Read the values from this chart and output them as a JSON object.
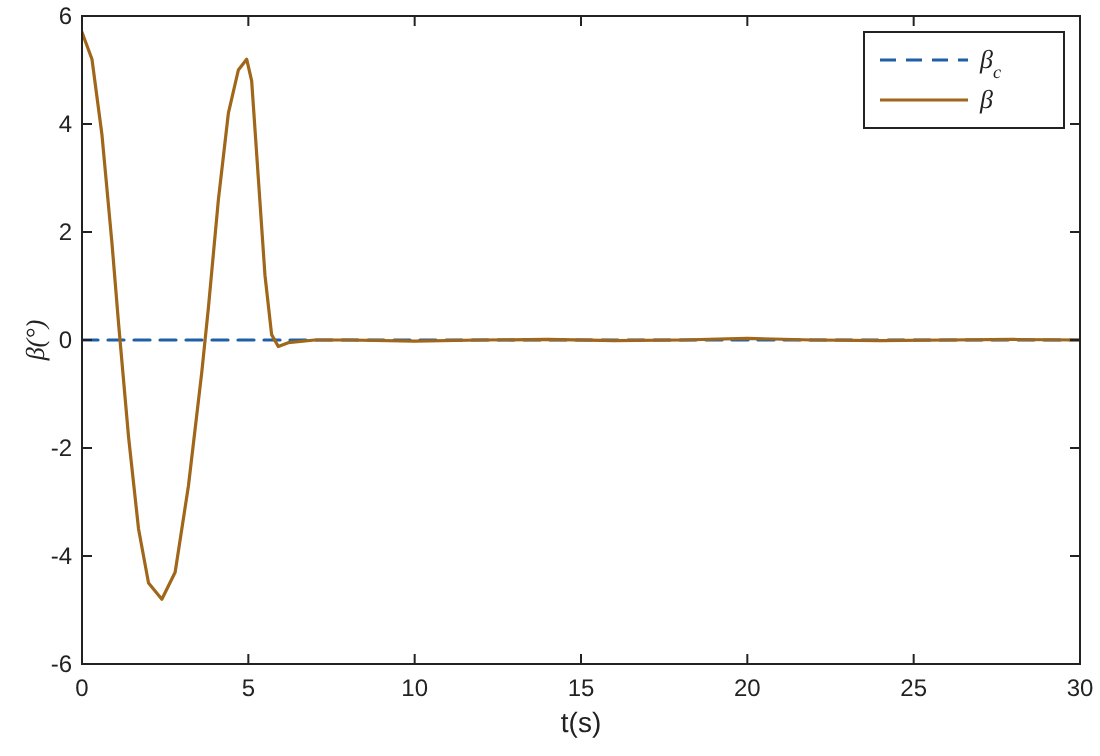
{
  "chart_data": {
    "type": "line",
    "xlabel": "t(s)",
    "ylabel": "β(°)",
    "xlim": [
      0,
      30
    ],
    "ylim": [
      -6,
      6
    ],
    "xticks": [
      0,
      5,
      10,
      15,
      20,
      25,
      30
    ],
    "yticks": [
      -6,
      -4,
      -2,
      0,
      2,
      4,
      6
    ],
    "grid": false,
    "legend": "top right",
    "series": [
      {
        "name": "β$_{c}$",
        "color": "#1f5fa8",
        "line_style": "dashed",
        "x": [
          0,
          30
        ],
        "values": [
          0,
          0
        ]
      },
      {
        "name": "β",
        "color": "#a0661a",
        "line_style": "solid",
        "x": [
          0,
          0.3,
          0.6,
          0.9,
          1.1,
          1.4,
          1.7,
          2.0,
          2.4,
          2.8,
          3.2,
          3.6,
          3.8,
          4.1,
          4.4,
          4.7,
          4.95,
          5.1,
          5.3,
          5.5,
          5.7,
          5.9,
          6.2,
          7,
          8,
          10,
          12,
          14,
          16,
          18,
          20,
          22,
          24,
          26,
          28,
          30
        ],
        "values": [
          5.7,
          5.2,
          3.8,
          1.8,
          0.3,
          -1.8,
          -3.5,
          -4.5,
          -4.8,
          -4.3,
          -2.7,
          -0.6,
          0.6,
          2.6,
          4.2,
          5.0,
          5.2,
          4.8,
          3.0,
          1.2,
          0.1,
          -0.12,
          -0.05,
          0,
          0,
          -0.02,
          0,
          0.01,
          -0.01,
          0,
          0.03,
          0,
          -0.01,
          0,
          0.01,
          0
        ]
      }
    ]
  }
}
